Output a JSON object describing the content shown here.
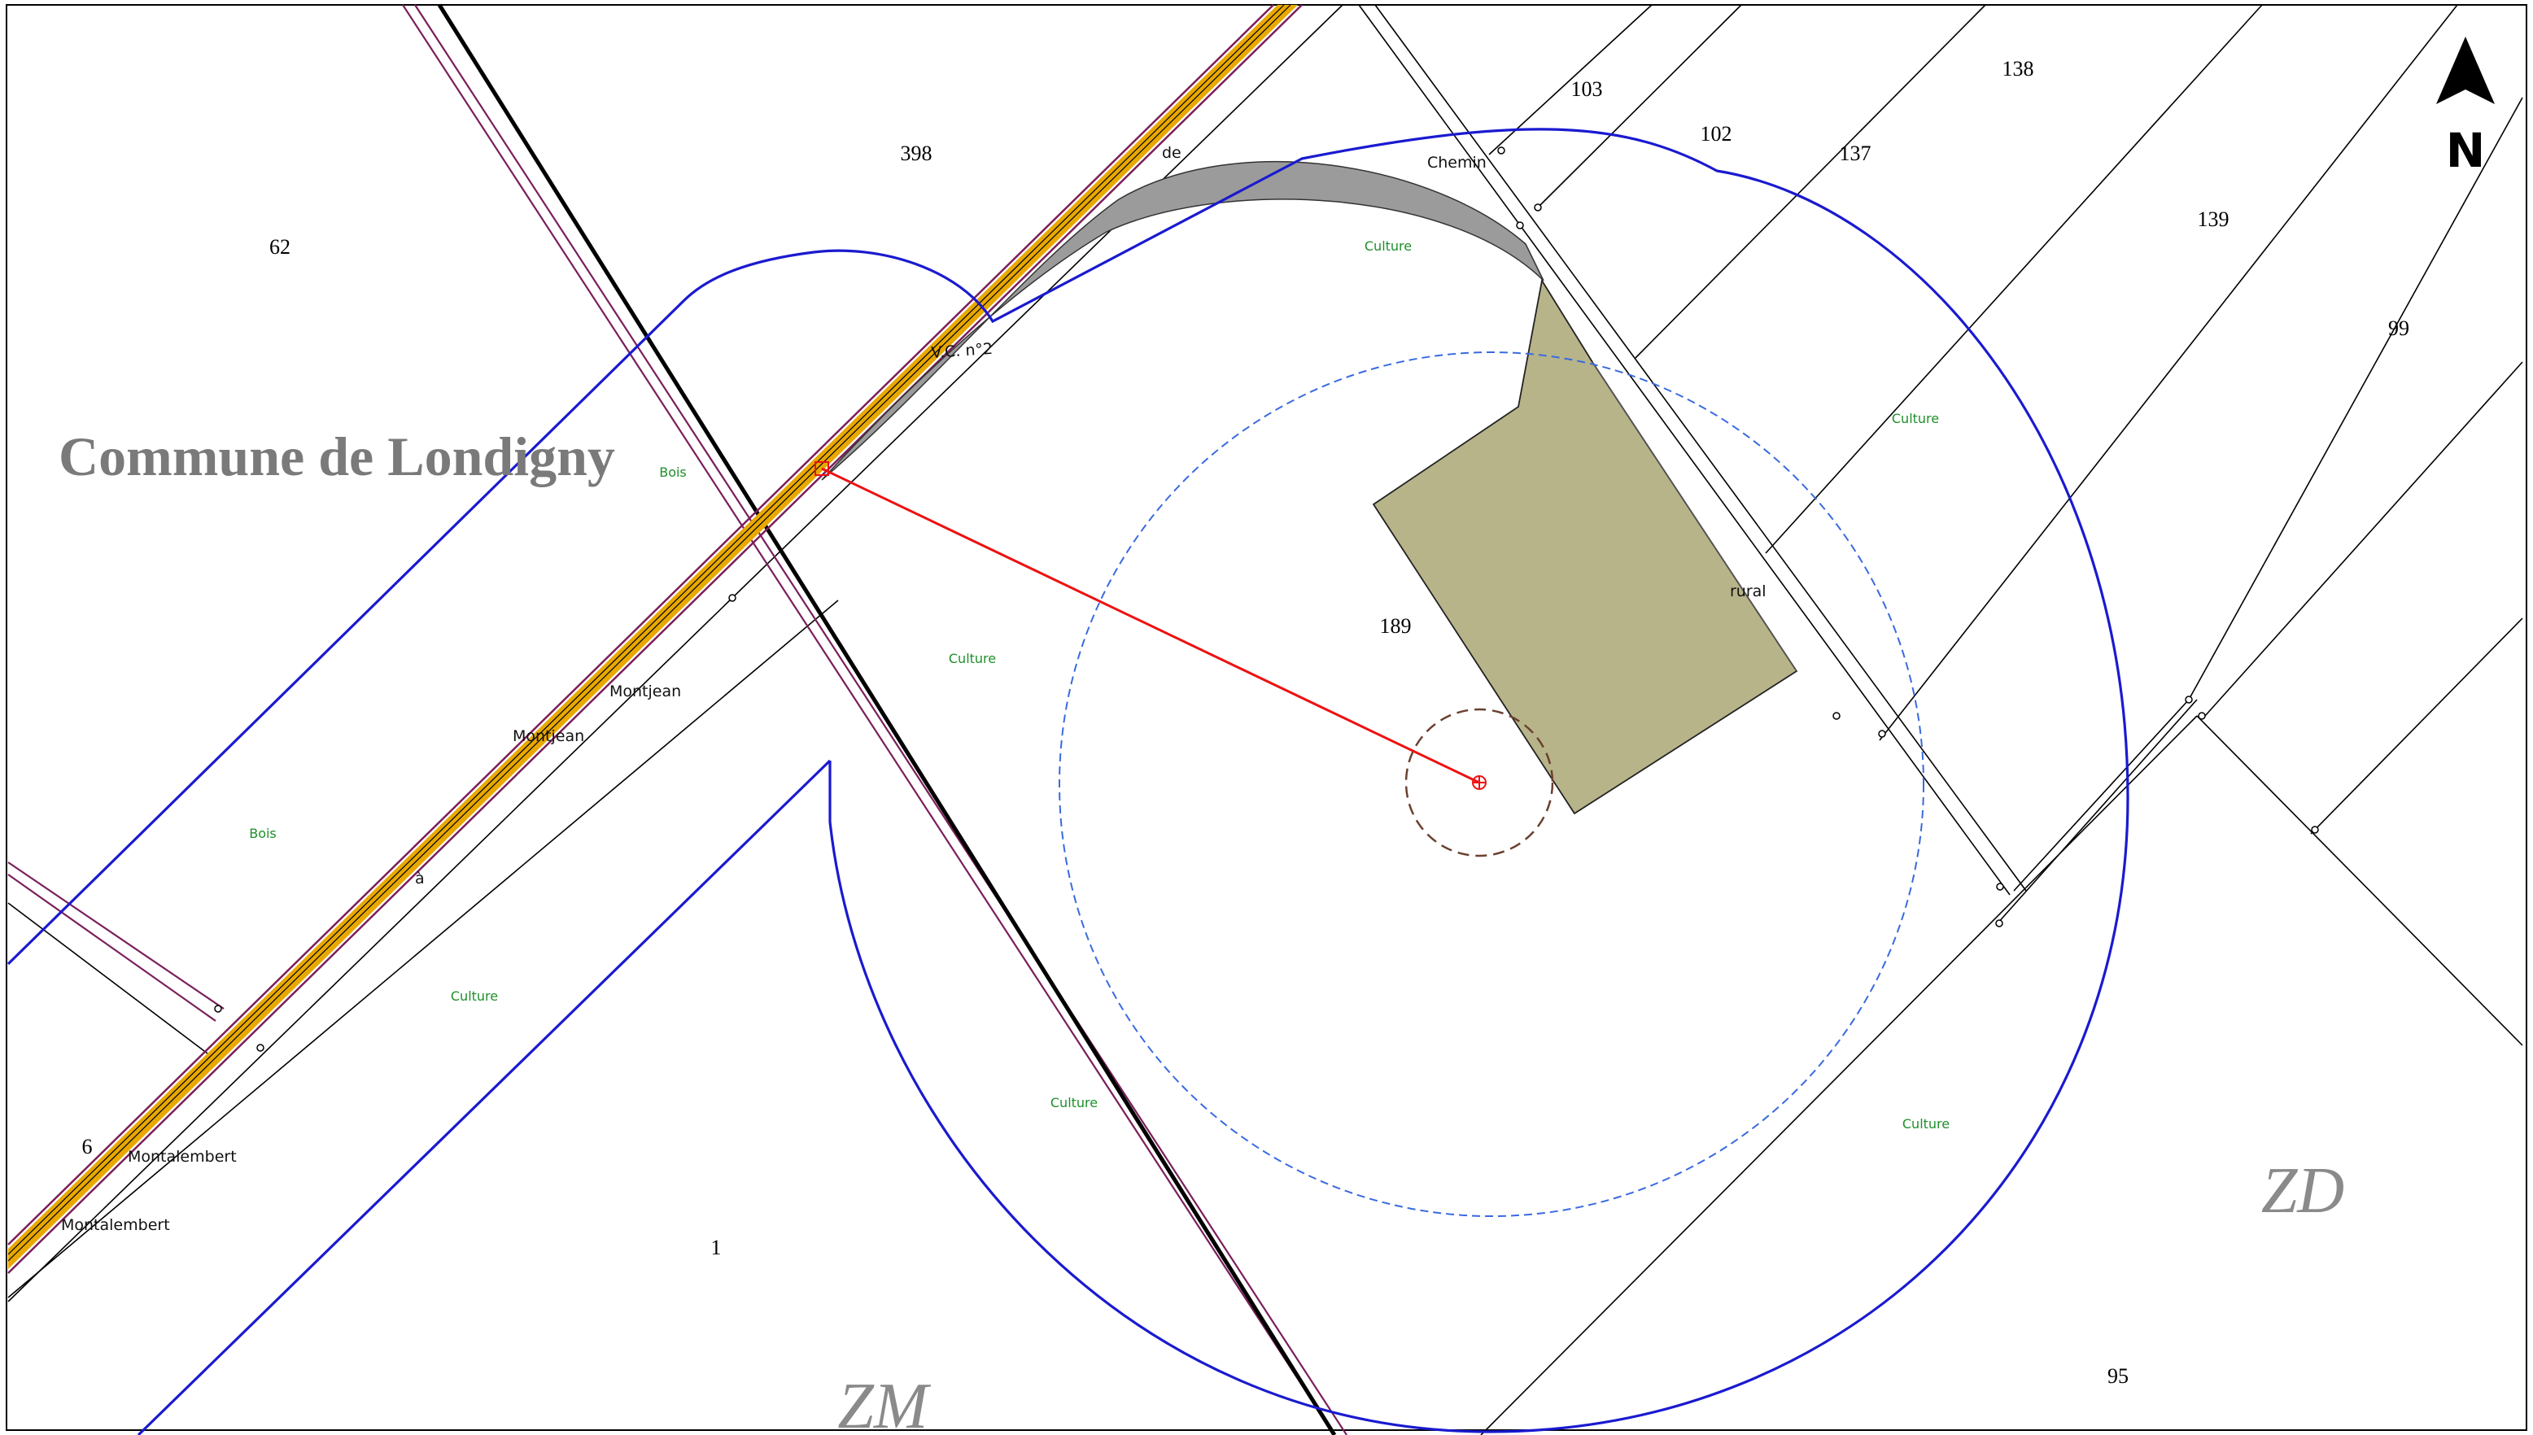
{
  "map": {
    "commune_label": "Commune de Londigny",
    "north_label": "N",
    "sections": [
      "ZM",
      "ZD"
    ],
    "parcels": [
      "62",
      "398",
      "103",
      "102",
      "137",
      "138",
      "139",
      "99",
      "189",
      "6",
      "1",
      "95"
    ],
    "land_use": [
      "Bois",
      "Bois",
      "Culture",
      "Culture",
      "Culture",
      "Culture",
      "Culture",
      "Culture",
      "Culture"
    ],
    "streets": [
      "V.C. n°2",
      "de",
      "Chemin",
      "rural",
      "Montjean",
      "Montjean",
      "à",
      "Montalembert",
      "Montalembert"
    ],
    "colors": {
      "road_fill": "#e8a800",
      "road_border": "#7a1f5a",
      "buffer_line": "#1a1ad0",
      "buffer_dashed": "#3a6ae0",
      "measure_line": "#ee1111",
      "building_fill": "#b8b48a",
      "access_fill": "#9b9b9b",
      "land_use_text": "#1f8f2a"
    }
  }
}
